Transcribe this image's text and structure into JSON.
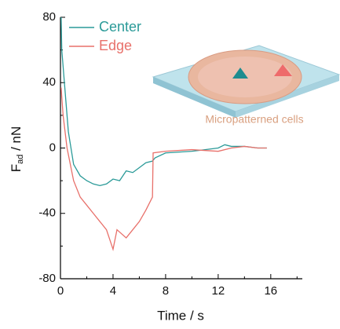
{
  "chart_data": {
    "type": "line",
    "y_label": {
      "main": "F",
      "sub": "ad",
      "unit": " / nN"
    },
    "x_label": "Time / s",
    "annotation": "Micropatterned cells",
    "xlim": [
      0,
      18.4
    ],
    "xticks": [
      0,
      4,
      8,
      12,
      16
    ],
    "ylim": [
      -80,
      80
    ],
    "yticks": [
      -80,
      -40,
      0,
      40,
      80
    ],
    "series": [
      {
        "name": "Center",
        "color": "#2a9a98",
        "x": [
          0.05,
          0.1,
          0.3,
          0.6,
          1,
          1.5,
          2,
          2.5,
          3,
          3.5,
          4,
          4.5,
          5,
          5.5,
          6,
          6.5,
          7,
          7.2,
          8,
          10,
          12,
          12.5,
          13,
          14,
          15,
          15.7
        ],
        "values": [
          80,
          60,
          40,
          10,
          -10,
          -17,
          -20,
          -22,
          -23,
          -22,
          -19,
          -20,
          -14,
          -15,
          -12,
          -9,
          -8,
          -6,
          -3,
          -2,
          0,
          2,
          1,
          1,
          0,
          0
        ]
      },
      {
        "name": "Edge",
        "color": "#e8706a",
        "x": [
          0.05,
          0.2,
          0.5,
          1,
          1.5,
          2,
          2.5,
          3,
          3.5,
          4,
          4.3,
          5,
          5.5,
          6,
          6.5,
          7,
          7.05,
          8,
          10,
          12,
          13,
          14,
          15,
          15.7
        ],
        "values": [
          37,
          20,
          0,
          -20,
          -30,
          -35,
          -40,
          -45,
          -50,
          -62,
          -50,
          -55,
          -50,
          -45,
          -38,
          -30,
          -3,
          -2,
          -1,
          -2,
          0,
          1,
          0,
          0
        ]
      }
    ]
  }
}
